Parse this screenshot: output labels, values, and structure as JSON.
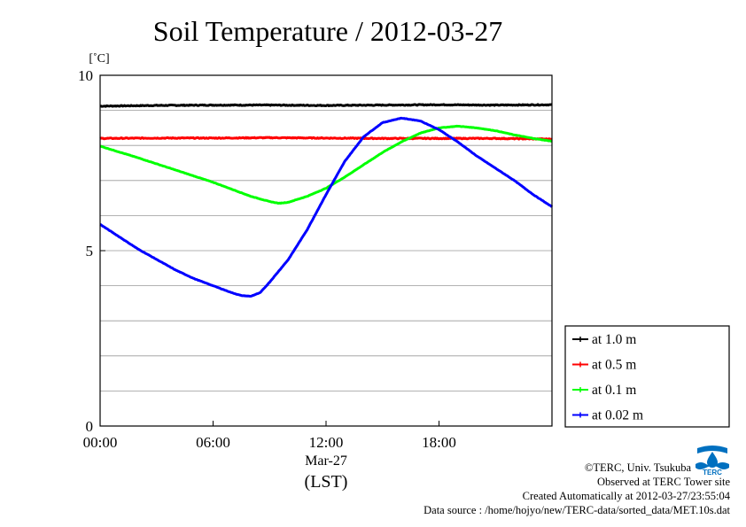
{
  "chart_data": {
    "type": "line",
    "title": "Soil Temperature / 2012-03-27",
    "ylabel": "[˚C]",
    "xlabel": "(LST)",
    "date_label": "Mar-27",
    "ylim": [
      0,
      10
    ],
    "xlim_hours": [
      0,
      24
    ],
    "y_ticks": [
      "0",
      "5",
      "10"
    ],
    "x_ticks": [
      "00:00",
      "06:00",
      "12:00",
      "18:00"
    ],
    "grid": true,
    "legend_position": "right",
    "series": [
      {
        "name": "at 1.0 m",
        "color": "#000000",
        "points": [
          [
            0,
            9.12
          ],
          [
            3,
            9.14
          ],
          [
            6,
            9.15
          ],
          [
            9,
            9.15
          ],
          [
            12,
            9.14
          ],
          [
            15,
            9.15
          ],
          [
            18,
            9.16
          ],
          [
            21,
            9.15
          ],
          [
            24,
            9.16
          ]
        ]
      },
      {
        "name": "at 0.5 m",
        "color": "#ff0000",
        "points": [
          [
            0,
            8.2
          ],
          [
            3,
            8.21
          ],
          [
            6,
            8.21
          ],
          [
            9,
            8.22
          ],
          [
            12,
            8.21
          ],
          [
            15,
            8.2
          ],
          [
            18,
            8.2
          ],
          [
            21,
            8.2
          ],
          [
            24,
            8.18
          ]
        ]
      },
      {
        "name": "at 0.1 m",
        "color": "#00ff00",
        "points": [
          [
            0,
            7.98
          ],
          [
            2,
            7.65
          ],
          [
            4,
            7.3
          ],
          [
            6,
            6.95
          ],
          [
            7,
            6.75
          ],
          [
            8,
            6.55
          ],
          [
            9,
            6.4
          ],
          [
            9.5,
            6.35
          ],
          [
            10,
            6.38
          ],
          [
            11,
            6.55
          ],
          [
            12,
            6.78
          ],
          [
            13,
            7.1
          ],
          [
            14,
            7.45
          ],
          [
            15,
            7.8
          ],
          [
            16,
            8.1
          ],
          [
            17,
            8.35
          ],
          [
            18,
            8.5
          ],
          [
            19,
            8.55
          ],
          [
            20,
            8.5
          ],
          [
            21,
            8.42
          ],
          [
            22,
            8.3
          ],
          [
            23,
            8.2
          ],
          [
            24,
            8.12
          ]
        ]
      },
      {
        "name": "at 0.02 m",
        "color": "#0000ff",
        "points": [
          [
            0,
            5.75
          ],
          [
            1,
            5.4
          ],
          [
            2,
            5.05
          ],
          [
            3,
            4.75
          ],
          [
            4,
            4.45
          ],
          [
            5,
            4.2
          ],
          [
            6,
            4.0
          ],
          [
            7,
            3.8
          ],
          [
            7.5,
            3.72
          ],
          [
            8,
            3.7
          ],
          [
            8.5,
            3.8
          ],
          [
            9,
            4.1
          ],
          [
            10,
            4.75
          ],
          [
            11,
            5.6
          ],
          [
            12,
            6.6
          ],
          [
            13,
            7.55
          ],
          [
            14,
            8.25
          ],
          [
            15,
            8.65
          ],
          [
            16,
            8.78
          ],
          [
            17,
            8.7
          ],
          [
            18,
            8.45
          ],
          [
            19,
            8.1
          ],
          [
            20,
            7.7
          ],
          [
            21,
            7.35
          ],
          [
            22,
            7.0
          ],
          [
            23,
            6.6
          ],
          [
            24,
            6.25
          ]
        ]
      }
    ]
  },
  "credits": {
    "copyright": "©TERC, Univ. Tsukuba",
    "observed": "Observed at TERC Tower site",
    "created": "Created Automatically at 2012-03-27/23:55:04",
    "source": "Data source : /home/hojyo/new/TERC-data/sorted_data/MET.10s.dat"
  },
  "logo": {
    "text": "TERC",
    "color": "#0070c0",
    "icon": "terc-logo-icon"
  }
}
